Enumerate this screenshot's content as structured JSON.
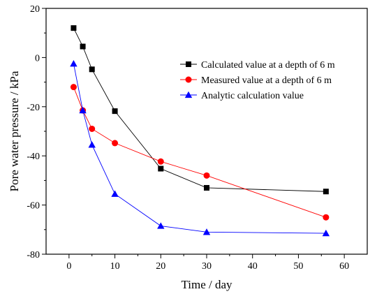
{
  "chart_data": {
    "type": "line",
    "xlabel": "Time / day",
    "ylabel": "Pore water pressure / kPa",
    "xlim": [
      -5,
      65
    ],
    "ylim": [
      -80,
      20
    ],
    "xticks": [
      0,
      10,
      20,
      30,
      40,
      50,
      60
    ],
    "yticks": [
      -80,
      -60,
      -40,
      -20,
      0,
      20
    ],
    "legend_position": "top-right",
    "grid": false,
    "series": [
      {
        "name": "Calculated value at a depth of 6 m",
        "marker": "square",
        "color": "#000000",
        "x": [
          1,
          3,
          5,
          10,
          20,
          30,
          56
        ],
        "y": [
          12,
          4.5,
          -4.8,
          -21.8,
          -45.2,
          -53,
          -54.5
        ]
      },
      {
        "name": "Measured value at a depth of 6 m",
        "marker": "circle",
        "color": "#ff0000",
        "x": [
          1,
          3,
          5,
          10,
          20,
          30,
          56
        ],
        "y": [
          -12,
          -21.5,
          -29,
          -34.8,
          -42.3,
          -48,
          -65
        ]
      },
      {
        "name": "Analytic calculation value",
        "marker": "triangle",
        "color": "#0000ff",
        "x": [
          1,
          3,
          5,
          10,
          20,
          30,
          56
        ],
        "y": [
          -2.5,
          -21.5,
          -35.5,
          -55.5,
          -68.5,
          -71,
          -71.5
        ]
      }
    ]
  }
}
